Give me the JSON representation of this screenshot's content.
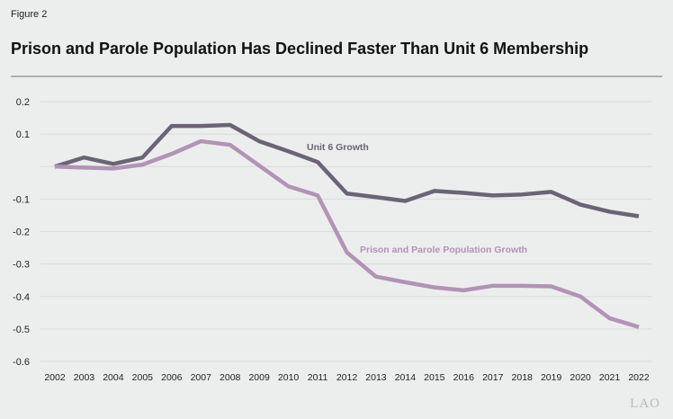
{
  "figure_label": "Figure 2",
  "title": "Prison and Parole Population Has Declined Faster Than Unit 6 Membership",
  "logo": "LAO",
  "chart_data": {
    "type": "line",
    "title": "Prison and Parole Population Has Declined Faster Than Unit 6 Membership",
    "xlabel": "",
    "ylabel": "",
    "x": [
      2002,
      2003,
      2004,
      2005,
      2006,
      2007,
      2008,
      2009,
      2010,
      2011,
      2012,
      2013,
      2014,
      2015,
      2016,
      2017,
      2018,
      2019,
      2020,
      2021,
      2022
    ],
    "ylim": [
      -0.6,
      0.2
    ],
    "yticks": [
      0.2,
      0.1,
      0,
      -0.1,
      -0.2,
      -0.3,
      -0.4,
      -0.5,
      -0.6
    ],
    "ytick_labels": [
      "0.2",
      "0.1",
      "",
      "-0.1",
      "-0.2",
      "-0.3",
      "-0.4",
      "-0.5",
      "-0.6"
    ],
    "grid": true,
    "series": [
      {
        "name": "Unit 6 Growth",
        "color": "#6b6474",
        "values": [
          0,
          0.028,
          0.008,
          0.028,
          0.125,
          0.125,
          0.128,
          0.078,
          0.047,
          0.014,
          -0.083,
          -0.094,
          -0.106,
          -0.075,
          -0.081,
          -0.089,
          -0.086,
          -0.078,
          -0.117,
          -0.139,
          -0.153
        ]
      },
      {
        "name": "Prison and Parole Population Growth",
        "color": "#b293b6",
        "values": [
          0,
          -0.003,
          -0.006,
          0.006,
          0.039,
          0.078,
          0.067,
          0.003,
          -0.061,
          -0.089,
          -0.264,
          -0.339,
          -0.356,
          -0.372,
          -0.381,
          -0.367,
          -0.367,
          -0.369,
          -0.4,
          -0.467,
          -0.494
        ]
      }
    ],
    "annotations": [
      {
        "text": "Unit 6 Growth",
        "series": 0,
        "near_x": 2012
      },
      {
        "text": "Prison and Parole Population Growth",
        "series": 1,
        "near_x": 2015
      }
    ]
  }
}
